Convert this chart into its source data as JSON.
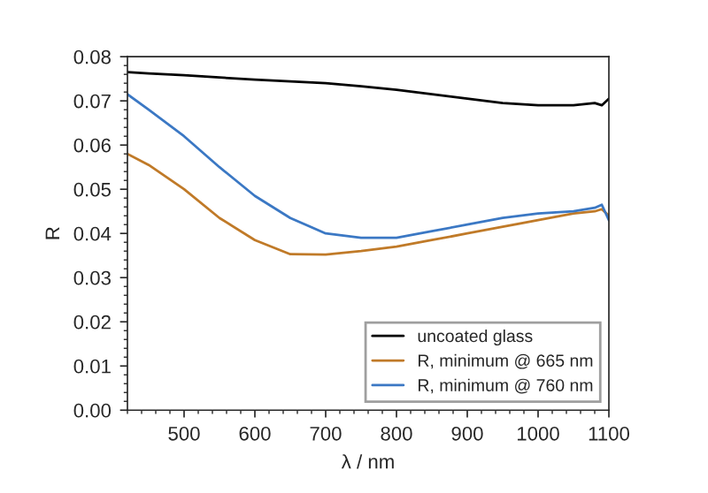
{
  "chart_data": {
    "type": "line",
    "xlabel": "λ / nm",
    "ylabel": "R",
    "xlim": [
      420,
      1100
    ],
    "ylim": [
      0,
      0.08
    ],
    "xticks": [
      500,
      600,
      700,
      800,
      900,
      1000,
      1100
    ],
    "yticks": [
      {
        "value": 0,
        "label": "0.00"
      },
      {
        "value": 0.01,
        "label": "0.01"
      },
      {
        "value": 0.02,
        "label": "0.02"
      },
      {
        "value": 0.03,
        "label": "0.03"
      },
      {
        "value": 0.04,
        "label": "0.04"
      },
      {
        "value": 0.05,
        "label": "0.05"
      },
      {
        "value": 0.06,
        "label": "0.06"
      },
      {
        "value": 0.07,
        "label": "0.07"
      },
      {
        "value": 0.08,
        "label": "0.08"
      }
    ],
    "x": [
      420,
      450,
      500,
      550,
      600,
      650,
      700,
      750,
      800,
      850,
      900,
      950,
      1000,
      1050,
      1080,
      1090,
      1100
    ],
    "series": [
      {
        "name": "uncoated glass",
        "color": "#000000",
        "values": [
          0.0765,
          0.0762,
          0.0758,
          0.0753,
          0.0748,
          0.0744,
          0.074,
          0.0733,
          0.0725,
          0.0715,
          0.0705,
          0.0695,
          0.069,
          0.069,
          0.0695,
          0.069,
          0.0705
        ]
      },
      {
        "name": "R, minimum @ 665 nm",
        "color": "#c07a28",
        "values": [
          0.058,
          0.0555,
          0.05,
          0.0435,
          0.0385,
          0.0353,
          0.0352,
          0.036,
          0.037,
          0.0385,
          0.04,
          0.0415,
          0.043,
          0.0445,
          0.045,
          0.0455,
          0.044
        ]
      },
      {
        "name": "R, minimum @ 760 nm",
        "color": "#3b78c4",
        "values": [
          0.0715,
          0.068,
          0.062,
          0.055,
          0.0485,
          0.0435,
          0.04,
          0.039,
          0.039,
          0.0405,
          0.042,
          0.0435,
          0.0445,
          0.045,
          0.0458,
          0.0465,
          0.043
        ]
      }
    ],
    "legend": "lower right",
    "grid": false,
    "line_style": "solid",
    "marker": "none"
  }
}
